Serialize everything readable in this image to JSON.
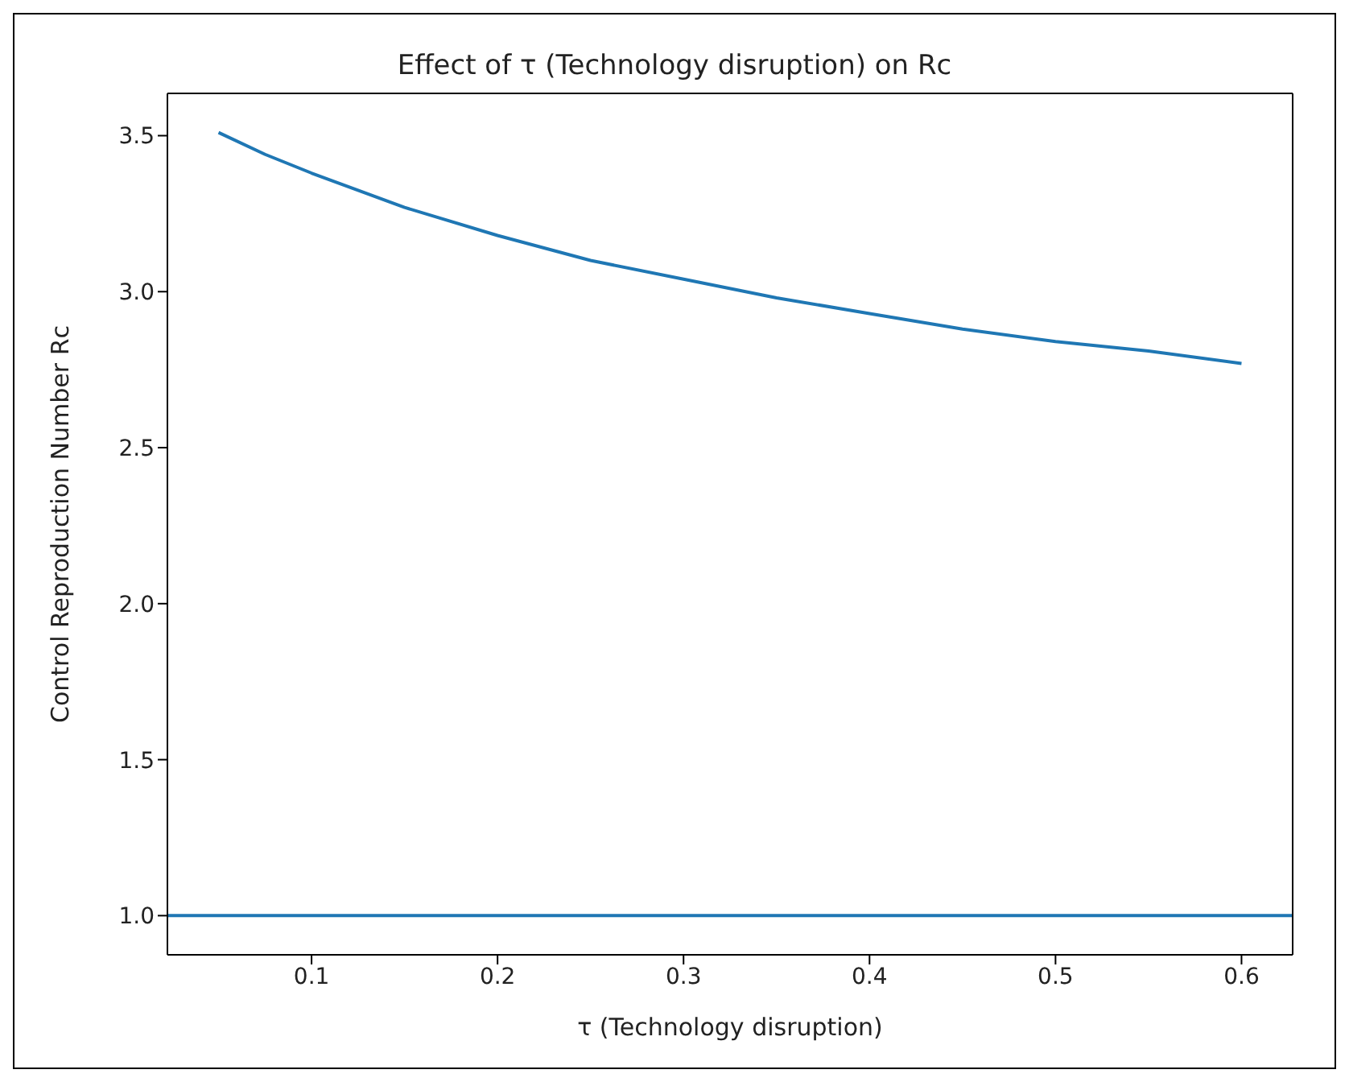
{
  "chart_data": {
    "type": "line",
    "title": "Effect of τ (Technology disruption) on Rc",
    "xlabel": "τ (Technology disruption)",
    "ylabel": "Control Reproduction Number Rc",
    "x": [
      0.05,
      0.075,
      0.1,
      0.15,
      0.2,
      0.25,
      0.3,
      0.35,
      0.4,
      0.45,
      0.5,
      0.55,
      0.6
    ],
    "series": [
      {
        "color": "#1f77b4",
        "values": [
          3.51,
          3.44,
          3.38,
          3.27,
          3.18,
          3.1,
          3.04,
          2.98,
          2.93,
          2.88,
          2.84,
          2.81,
          2.77
        ]
      }
    ],
    "ref_lines": [
      {
        "axis": "y",
        "value": 1.0,
        "color": "#1f77b4"
      }
    ],
    "xlim": [
      0.0225,
      0.6275
    ],
    "xticks": [
      0.1,
      0.2,
      0.3,
      0.4,
      0.5,
      0.6
    ],
    "ylim": [
      0.8745,
      3.6355
    ],
    "yticks": [
      {
        "value": 1,
        "label": "1.0"
      },
      1.5,
      {
        "value": 2,
        "label": "2.0"
      },
      2.5,
      {
        "value": 3,
        "label": "3.0"
      },
      3.5
    ],
    "grid": false,
    "legend": false,
    "marker": "none",
    "line_style": "solid"
  }
}
